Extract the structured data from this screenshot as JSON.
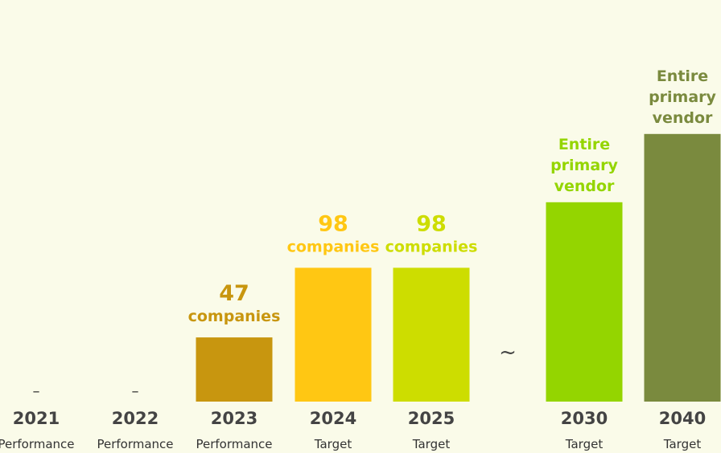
{
  "chart_data": {
    "type": "bar",
    "categories": [
      "2021",
      "2022",
      "2023",
      "2024",
      "2025",
      "2030",
      "2040"
    ],
    "status_labels": [
      "Performance",
      "Performance",
      "Performance",
      "Target",
      "Target",
      "Target",
      "Target"
    ],
    "values": [
      0,
      0,
      47,
      98,
      98,
      146,
      196
    ],
    "value_labels": [
      [
        "–"
      ],
      [
        "–"
      ],
      [
        "47",
        "companies"
      ],
      [
        "98",
        "companies"
      ],
      [
        "98",
        "companies"
      ],
      [
        "Entire",
        "primary",
        "vendor"
      ],
      [
        "Entire",
        "primary",
        "vendor"
      ]
    ],
    "colors": [
      "#c8960f",
      "#c8960f",
      "#c8960f",
      "#ffc713",
      "#cddd00",
      "#94d500",
      "#7a8a3e"
    ],
    "label_colors": [
      "#333333",
      "#333333",
      "#c8960f",
      "#ffc713",
      "#cddd00",
      "#94d500",
      "#7a8a3e"
    ],
    "axis_break_label": "~",
    "axis_break_after_index": 4,
    "title": "",
    "xlabel": "",
    "ylabel": "",
    "ylim": [
      0,
      200
    ],
    "grid": false,
    "legend": "none"
  }
}
